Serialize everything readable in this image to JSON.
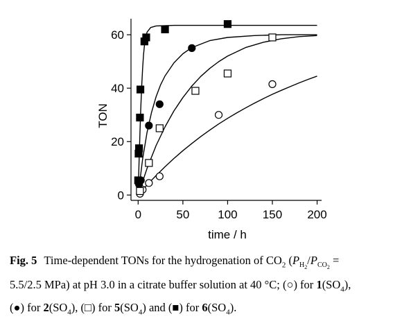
{
  "chart_data": {
    "type": "scatter",
    "xlabel": "time / h",
    "ylabel": "TON",
    "xlim": [
      -8,
      205
    ],
    "ylim": [
      -2,
      66
    ],
    "xticks": [
      0,
      50,
      100,
      150,
      200
    ],
    "yticks": [
      0,
      20,
      40,
      60
    ],
    "grid": false,
    "legend": "none",
    "series": [
      {
        "marker": "open-circle",
        "points": [
          [
            2,
            0.5
          ],
          [
            3,
            1.5
          ],
          [
            5,
            2
          ],
          [
            12,
            4.5
          ],
          [
            24,
            7
          ],
          [
            90,
            30
          ],
          [
            150,
            41.5
          ]
        ],
        "fit_curve": [
          [
            0,
            0
          ],
          [
            10,
            3.8
          ],
          [
            20,
            7.3
          ],
          [
            30,
            10.6
          ],
          [
            40,
            13.7
          ],
          [
            50,
            16.6
          ],
          [
            60,
            19.3
          ],
          [
            70,
            21.9
          ],
          [
            80,
            24.3
          ],
          [
            90,
            26.6
          ],
          [
            100,
            28.7
          ],
          [
            110,
            30.7
          ],
          [
            120,
            32.6
          ],
          [
            130,
            34.4
          ],
          [
            140,
            36.1
          ],
          [
            150,
            37.7
          ],
          [
            160,
            39.2
          ],
          [
            170,
            40.6
          ],
          [
            180,
            42
          ],
          [
            190,
            43.3
          ],
          [
            200,
            44.5
          ]
        ]
      },
      {
        "marker": "filled-circle",
        "points": [
          [
            1,
            4
          ],
          [
            3,
            5.5
          ],
          [
            12,
            26
          ],
          [
            24,
            34
          ],
          [
            60,
            55
          ]
        ],
        "fit_curve": [
          [
            0,
            0
          ],
          [
            5,
            13.5
          ],
          [
            10,
            23.5
          ],
          [
            15,
            31
          ],
          [
            20,
            36.8
          ],
          [
            25,
            41.2
          ],
          [
            30,
            44.6
          ],
          [
            40,
            49.5
          ],
          [
            50,
            52.9
          ],
          [
            60,
            55.2
          ],
          [
            80,
            57.8
          ],
          [
            100,
            59
          ],
          [
            130,
            59.7
          ],
          [
            160,
            60
          ],
          [
            200,
            60
          ]
        ]
      },
      {
        "marker": "open-square",
        "points": [
          [
            2,
            1.5
          ],
          [
            12,
            12
          ],
          [
            24,
            25
          ],
          [
            64,
            39
          ],
          [
            100,
            45.5
          ],
          [
            150,
            59
          ]
        ],
        "fit_curve": [
          [
            0,
            0
          ],
          [
            10,
            10
          ],
          [
            20,
            18.5
          ],
          [
            30,
            25.5
          ],
          [
            40,
            31.5
          ],
          [
            50,
            36.5
          ],
          [
            60,
            40.8
          ],
          [
            70,
            44.4
          ],
          [
            80,
            47.4
          ],
          [
            90,
            49.9
          ],
          [
            100,
            52
          ],
          [
            120,
            55.2
          ],
          [
            140,
            57.2
          ],
          [
            160,
            58.5
          ],
          [
            180,
            59.3
          ],
          [
            200,
            59.7
          ]
        ]
      },
      {
        "marker": "filled-square",
        "points": [
          [
            0,
            5.5
          ],
          [
            0.5,
            15.5
          ],
          [
            1,
            17.5
          ],
          [
            2,
            29
          ],
          [
            2.5,
            39.5
          ],
          [
            7,
            57.5
          ],
          [
            9,
            59
          ],
          [
            30,
            62
          ],
          [
            100,
            64
          ]
        ],
        "fit_curve": [
          [
            0,
            0
          ],
          [
            1,
            12
          ],
          [
            2,
            23
          ],
          [
            3,
            33
          ],
          [
            4,
            41
          ],
          [
            5,
            47.5
          ],
          [
            6,
            52.5
          ],
          [
            7,
            56
          ],
          [
            8,
            58.5
          ],
          [
            10,
            61
          ],
          [
            14,
            62.7
          ],
          [
            20,
            63.3
          ],
          [
            40,
            63.5
          ],
          [
            100,
            63.5
          ],
          [
            200,
            63.5
          ]
        ]
      }
    ]
  },
  "caption": {
    "label": "Fig. 5",
    "text_a": "Time-dependent TONs for the hydrogenation of CO",
    "sub_2a": "2",
    "text_b": " (",
    "p_h2": "P",
    "sub_h2": "H",
    "sub_h2_2": "2",
    "slash": "/",
    "p_co2": "P",
    "sub_co2": "CO",
    "sub_co2_2": "2",
    "text_c": " =",
    "text_d": "5.5/2.5 MPa) at pH 3.0 in a citrate buffer solution at 40 °C; (○) for ",
    "c1": "1",
    "c1_suffix": "(SO",
    "c1_sub": "4",
    "c1_end": "),",
    "text_e": "(●) for ",
    "c2": "2",
    "c2_suffix": "(SO",
    "c2_sub": "4",
    "c2_end": "), (□) for ",
    "c5": "5",
    "c5_suffix": "(SO",
    "c5_sub": "4",
    "c5_end": ") and (■) for ",
    "c6": "6",
    "c6_suffix": "(SO",
    "c6_sub": "4",
    "c6_end": ")."
  }
}
